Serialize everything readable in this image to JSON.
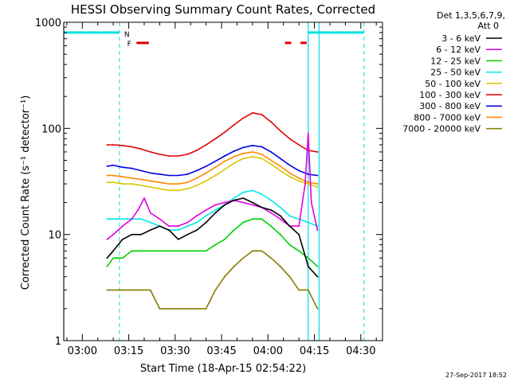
{
  "chart_data": {
    "type": "line",
    "title": "HESSI Observing Summary Count Rates, Corrected",
    "xlabel": "Start Time (18-Apr-15 02:54:22)",
    "ylabel": "Corrected Count Rate (s⁻¹ detector⁻¹)",
    "yscale": "log",
    "ylim": [
      1,
      1000
    ],
    "xlim_minutes": [
      -6,
      97
    ],
    "x_ticks": [
      {
        "label": "03:00",
        "minutes": 0
      },
      {
        "label": "03:15",
        "minutes": 15
      },
      {
        "label": "03:30",
        "minutes": 30
      },
      {
        "label": "03:45",
        "minutes": 45
      },
      {
        "label": "04:00",
        "minutes": 60
      },
      {
        "label": "04:15",
        "minutes": 75
      },
      {
        "label": "04:30",
        "minutes": 90
      }
    ],
    "y_ticks": [
      {
        "label": "1",
        "value": 1
      },
      {
        "label": "10",
        "value": 10
      },
      {
        "label": "100",
        "value": 100
      },
      {
        "label": "1000",
        "value": 1000
      }
    ],
    "legend_header": [
      "Det 1,3,5,6,7,9,",
      "Att 0"
    ],
    "legend_position": "right",
    "footer_date": "27-Sep-2017 18:52",
    "annotations": {
      "night_marker": "N",
      "flare_marker": "F",
      "night_line_value": 800,
      "night_segments": [
        [
          -6,
          12
        ],
        [
          73,
          91
        ]
      ],
      "saa_dashed_lines_minutes": [
        12,
        91
      ],
      "saa_solid_lines_minutes": [
        -6,
        73,
        76.5
      ],
      "flare_segments": [
        [
          17.5,
          21.5
        ],
        [
          65.5,
          67.5
        ],
        [
          70.5,
          72.5
        ]
      ]
    },
    "series": [
      {
        "name": "3 - 6 keV",
        "color": "#000000",
        "t": [
          8,
          10,
          13,
          16,
          19,
          22,
          25,
          28,
          31,
          34,
          37,
          40,
          43,
          46,
          49,
          52,
          55,
          58,
          61,
          64,
          67,
          70,
          73,
          76
        ],
        "values": [
          6,
          7,
          9,
          10,
          10,
          11,
          12,
          11,
          9,
          10,
          11,
          13,
          16,
          19,
          21,
          22,
          20,
          18,
          17,
          15,
          12,
          10,
          5,
          4
        ]
      },
      {
        "name": "6 - 12 keV",
        "color": "#e000e0",
        "t": [
          8,
          10,
          13,
          16,
          18,
          20,
          22,
          25,
          28,
          31,
          34,
          37,
          40,
          43,
          46,
          49,
          52,
          55,
          58,
          61,
          64,
          67,
          70,
          72,
          73,
          74,
          76
        ],
        "values": [
          9,
          10,
          12,
          14,
          17,
          22,
          16,
          14,
          12,
          12,
          13,
          15,
          17,
          19,
          20,
          21,
          20,
          19,
          18,
          16,
          14,
          12,
          12,
          30,
          90,
          20,
          11
        ]
      },
      {
        "name": "12 - 25 keV",
        "color": "#00d000",
        "t": [
          8,
          10,
          13,
          16,
          19,
          22,
          25,
          28,
          31,
          34,
          37,
          40,
          43,
          46,
          49,
          52,
          55,
          58,
          61,
          64,
          67,
          70,
          73,
          76
        ],
        "values": [
          5,
          6,
          6,
          7,
          7,
          7,
          7,
          7,
          7,
          7,
          7,
          7,
          8,
          9,
          11,
          13,
          14,
          14,
          12,
          10,
          8,
          7,
          6,
          5
        ]
      },
      {
        "name": "25 - 50 keV",
        "color": "#00e8e8",
        "t": [
          8,
          10,
          13,
          16,
          19,
          22,
          25,
          28,
          31,
          34,
          37,
          40,
          43,
          46,
          49,
          52,
          55,
          58,
          61,
          64,
          67,
          70,
          73,
          76
        ],
        "values": [
          14,
          14,
          14,
          14,
          14,
          13,
          12,
          11,
          11,
          12,
          13,
          15,
          17,
          19,
          22,
          25,
          26,
          24,
          21,
          18,
          15,
          14,
          13,
          12
        ]
      },
      {
        "name": "50 - 100 keV",
        "color": "#d8c800",
        "t": [
          8,
          10,
          13,
          16,
          19,
          22,
          25,
          28,
          31,
          34,
          37,
          40,
          43,
          46,
          49,
          52,
          55,
          58,
          61,
          64,
          67,
          70,
          73,
          76
        ],
        "values": [
          31,
          31,
          30,
          30,
          29,
          28,
          27,
          26,
          26,
          27,
          29,
          32,
          36,
          41,
          47,
          52,
          54,
          52,
          46,
          40,
          35,
          32,
          30,
          28
        ]
      },
      {
        "name": "100 - 300 keV",
        "color": "#e00000",
        "t": [
          8,
          10,
          13,
          16,
          19,
          22,
          25,
          28,
          31,
          34,
          37,
          40,
          43,
          46,
          49,
          52,
          55,
          58,
          61,
          64,
          67,
          70,
          73,
          76
        ],
        "values": [
          70,
          70,
          69,
          67,
          64,
          60,
          57,
          55,
          55,
          57,
          62,
          70,
          80,
          92,
          108,
          125,
          140,
          135,
          115,
          95,
          80,
          70,
          62,
          60
        ]
      },
      {
        "name": "300 - 800 keV",
        "color": "#0000e0",
        "t": [
          8,
          10,
          13,
          16,
          19,
          22,
          25,
          28,
          31,
          34,
          37,
          40,
          43,
          46,
          49,
          52,
          55,
          58,
          61,
          64,
          67,
          70,
          73,
          76
        ],
        "values": [
          44,
          45,
          43,
          42,
          40,
          38,
          37,
          36,
          36,
          37,
          40,
          44,
          49,
          55,
          61,
          66,
          69,
          67,
          60,
          52,
          45,
          40,
          37,
          36
        ]
      },
      {
        "name": "800 - 7000 keV",
        "color": "#ff8800",
        "t": [
          8,
          10,
          13,
          16,
          19,
          22,
          25,
          28,
          31,
          34,
          37,
          40,
          43,
          46,
          49,
          52,
          55,
          58,
          61,
          64,
          67,
          70,
          73,
          76
        ],
        "values": [
          36,
          36,
          35,
          34,
          33,
          32,
          31,
          30,
          30,
          31,
          34,
          38,
          43,
          49,
          54,
          58,
          60,
          57,
          50,
          44,
          38,
          34,
          31,
          30
        ]
      },
      {
        "name": "7000 - 20000 keV",
        "color": "#8a7a00",
        "t": [
          8,
          10,
          13,
          16,
          19,
          22,
          25,
          28,
          31,
          34,
          37,
          40,
          43,
          46,
          49,
          52,
          55,
          58,
          61,
          64,
          67,
          70,
          73,
          76
        ],
        "values": [
          3,
          3,
          3,
          3,
          3,
          3,
          2,
          2,
          2,
          2,
          2,
          2,
          3,
          4,
          5,
          6,
          7,
          7,
          6,
          5,
          4,
          3,
          3,
          2
        ]
      }
    ]
  }
}
